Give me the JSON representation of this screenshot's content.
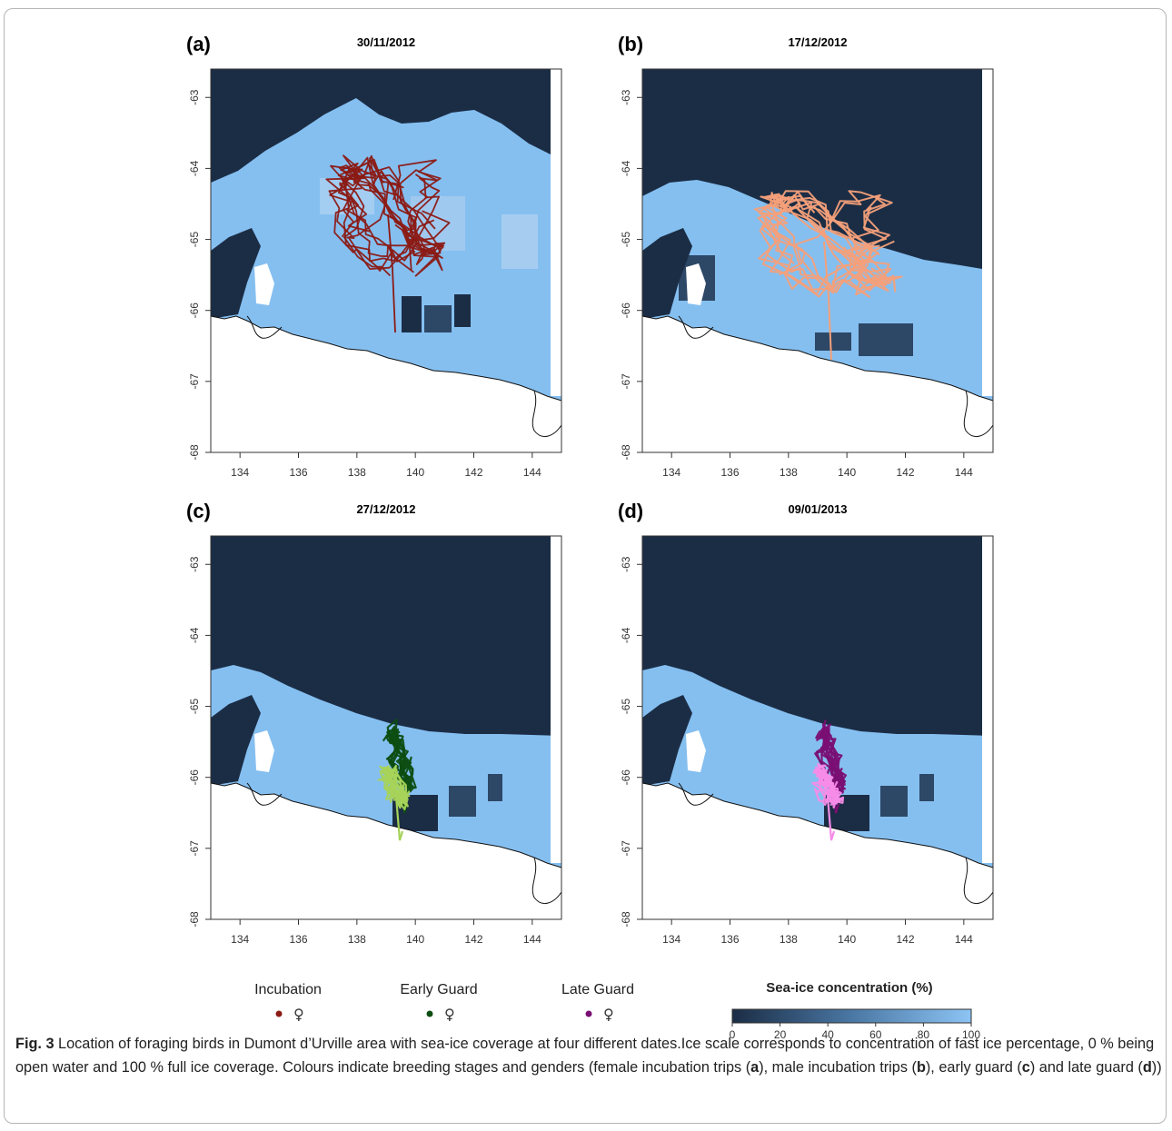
{
  "figure": {
    "x_ticks": [
      "134",
      "136",
      "138",
      "140",
      "142",
      "144"
    ],
    "y_ticks": [
      "-63",
      "-64",
      "-65",
      "-66",
      "-67",
      "-68"
    ],
    "colorbar_ticks": [
      "0",
      "20",
      "40",
      "60",
      "80",
      "100"
    ],
    "colorbar_title": "Sea-ice concentration (%)",
    "colors": {
      "open_water": "#1b2d45",
      "ice": "#85bff0",
      "land": "#ffffff",
      "coast_line": "#111111",
      "incubation_female": "#8b1a14",
      "incubation_male": "#f4a07a",
      "early_guard_female": "#0d4d12",
      "early_guard_male": "#a6d35a",
      "late_guard_female": "#7a0f73",
      "late_guard_male": "#f58ce8"
    },
    "panels": [
      {
        "letter": "(a)",
        "date": "30/11/2012",
        "ice_state": "extensive",
        "tracks": [
          {
            "group": "incubation",
            "sex": "female",
            "color": "#8b1a14"
          }
        ]
      },
      {
        "letter": "(b)",
        "date": "17/12/2012",
        "ice_state": "band",
        "tracks": [
          {
            "group": "incubation",
            "sex": "male",
            "color": "#f4a07a"
          }
        ]
      },
      {
        "letter": "(c)",
        "date": "27/12/2012",
        "ice_state": "narrow",
        "tracks": [
          {
            "group": "early guard",
            "sex": "female",
            "color": "#0d4d12"
          },
          {
            "group": "early guard",
            "sex": "male",
            "color": "#a6d35a"
          }
        ]
      },
      {
        "letter": "(d)",
        "date": "09/01/2013",
        "ice_state": "narrow",
        "tracks": [
          {
            "group": "late guard",
            "sex": "female",
            "color": "#7a0f73"
          },
          {
            "group": "late guard",
            "sex": "male",
            "color": "#f58ce8"
          }
        ]
      }
    ],
    "legend": [
      {
        "title": "Incubation",
        "female_color": "#8b1a14",
        "male_color": "#f4a07a",
        "female_symbol": "♀",
        "male_symbol": "♂"
      },
      {
        "title": "Early Guard",
        "female_color": "#0d4d12",
        "male_color": "#a6d35a",
        "female_symbol": "♀",
        "male_symbol": "♂"
      },
      {
        "title": "Late Guard",
        "female_color": "#7a0f73",
        "male_color": "#f58ce8",
        "female_symbol": "♀",
        "male_symbol": "♂"
      }
    ]
  },
  "caption": {
    "label": "Fig. 3",
    "text_1": " Location of foraging birds in Dumont d’Urville area with sea-ice coverage at four different dates.Ice scale corresponds to concentration of fast ice percentage, 0 % being open water and 100 % full ice coverage. Colours indicate breeding stages and genders (female incubation trips (",
    "ref_a": "a",
    "text_2": "), male incubation trips (",
    "ref_b": "b",
    "text_3": "), early guard (",
    "ref_c": "c",
    "text_4": ") and late guard (",
    "ref_d": "d",
    "text_5": "))"
  }
}
